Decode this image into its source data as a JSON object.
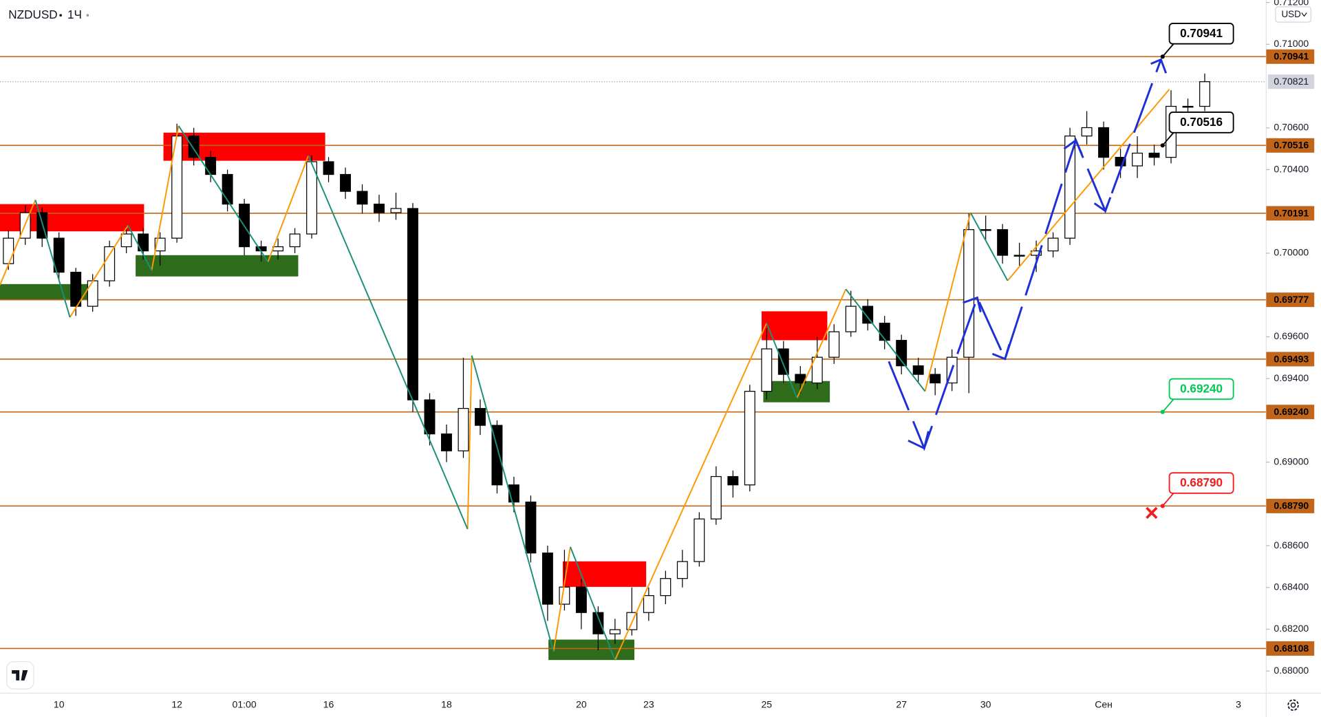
{
  "chart_data": {
    "type": "candlestick",
    "title": "NZDUSD",
    "interval": "1Ч",
    "currency": "USD",
    "categories": [
      null,
      null,
      null,
      "10",
      null,
      null,
      null,
      null,
      null,
      null,
      "12",
      null,
      null,
      null,
      "01:00",
      null,
      null,
      null,
      null,
      "16",
      null,
      null,
      null,
      null,
      null,
      null,
      "18",
      null,
      null,
      null,
      null,
      null,
      null,
      null,
      "20",
      null,
      null,
      null,
      "23",
      null,
      null,
      null,
      null,
      null,
      null,
      "25",
      null,
      null,
      null,
      null,
      null,
      null,
      null,
      "27",
      null,
      null,
      null,
      null,
      "30",
      null,
      null,
      null,
      null,
      null,
      null,
      "Сен",
      null,
      null,
      null,
      null,
      null,
      null,
      null,
      "3"
    ],
    "open": [
      0.6995,
      0.70072,
      0.70194,
      0.70072,
      0.69909,
      0.69746,
      0.69868,
      0.70031,
      0.70092,
      0.70011,
      0.70072,
      0.70561,
      0.70459,
      0.70377,
      0.70235,
      0.70031,
      0.70011,
      0.70031,
      0.70092,
      0.70438,
      0.70377,
      0.70296,
      0.70235,
      0.70194,
      0.70214,
      0.69298,
      0.69135,
      0.69054,
      0.69257,
      0.69176,
      0.68891,
      0.68809,
      0.68565,
      0.6832,
      0.68402,
      0.6828,
      0.68178,
      0.68198,
      0.6828,
      0.68361,
      0.68443,
      0.68524,
      0.68728,
      0.68931,
      0.68891,
      0.69339,
      0.69542,
      0.6942,
      0.69379,
      0.69502,
      0.69624,
      0.69746,
      0.69665,
      0.69583,
      0.69461,
      0.6942,
      0.69379,
      0.69502,
      0.70113,
      0.70113,
      0.6999,
      0.6999,
      0.70011,
      0.70072,
      0.70561,
      0.70601,
      0.70459,
      0.70418,
      0.70479,
      0.70459,
      0.70703,
      0.70703,
      null,
      null
    ],
    "high": [
      0.7011,
      0.7023,
      0.7022,
      0.701,
      0.6993,
      0.699,
      0.7006,
      0.7013,
      0.7012,
      0.701,
      0.7062,
      0.706,
      0.7049,
      0.704,
      0.7026,
      0.7006,
      0.7007,
      0.7012,
      0.7047,
      0.7046,
      0.7041,
      0.7033,
      0.7028,
      0.7029,
      0.7024,
      0.6933,
      0.6918,
      0.695,
      0.693,
      0.692,
      0.6893,
      0.6884,
      0.686,
      0.6858,
      0.6844,
      0.6831,
      0.6825,
      0.684,
      0.684,
      0.6848,
      0.6858,
      0.6876,
      0.6898,
      0.6896,
      0.6937,
      0.6964,
      0.6958,
      0.6946,
      0.696,
      0.6966,
      0.6982,
      0.6978,
      0.697,
      0.6961,
      0.695,
      0.6945,
      0.6954,
      0.7019,
      0.7018,
      0.7014,
      0.7005,
      0.7006,
      0.701,
      0.706,
      0.7068,
      0.7063,
      0.705,
      0.7056,
      0.7052,
      0.7078,
      0.7074,
      0.7086,
      null,
      null
    ],
    "low": [
      0.6992,
      0.7004,
      0.7003,
      0.6987,
      0.697,
      0.6972,
      0.6984,
      0.7,
      0.6997,
      0.6994,
      0.7005,
      0.7042,
      0.7034,
      0.702,
      0.6999,
      0.6996,
      0.6997,
      0.7,
      0.7007,
      0.7034,
      0.7026,
      0.7019,
      0.7015,
      0.7016,
      0.6924,
      0.6908,
      0.69,
      0.6902,
      0.6913,
      0.6885,
      0.6876,
      0.6852,
      0.6824,
      0.6829,
      0.682,
      0.681,
      0.6813,
      0.6817,
      0.6824,
      0.6832,
      0.684,
      0.685,
      0.687,
      0.6883,
      0.6886,
      0.693,
      0.6938,
      0.6933,
      0.6935,
      0.6947,
      0.696,
      0.6963,
      0.6954,
      0.6942,
      0.6938,
      0.6932,
      0.6934,
      0.6933,
      0.7006,
      0.6995,
      0.6994,
      0.6991,
      0.6998,
      0.7004,
      0.7052,
      0.704,
      0.7036,
      0.7036,
      0.7042,
      0.7043,
      0.7064,
      0.7068,
      null,
      null
    ],
    "close": [
      0.70072,
      0.70194,
      0.70072,
      0.69909,
      0.69746,
      0.69868,
      0.70031,
      0.70092,
      0.70011,
      0.70072,
      0.70561,
      0.70459,
      0.70377,
      0.70235,
      0.70031,
      0.70011,
      0.70031,
      0.70092,
      0.70438,
      0.70377,
      0.70296,
      0.70235,
      0.70194,
      0.70214,
      0.69298,
      0.69135,
      0.69054,
      0.69257,
      0.69176,
      0.68891,
      0.68809,
      0.68565,
      0.6832,
      0.68402,
      0.6828,
      0.68178,
      0.68198,
      0.6828,
      0.68361,
      0.68443,
      0.68524,
      0.68728,
      0.68931,
      0.68891,
      0.69339,
      0.69542,
      0.6942,
      0.69379,
      0.69502,
      0.69624,
      0.69746,
      0.69665,
      0.69583,
      0.69461,
      0.6942,
      0.69379,
      0.69502,
      0.70113,
      0.70113,
      0.6999,
      0.6999,
      0.70011,
      0.70072,
      0.70561,
      0.70601,
      0.70459,
      0.70418,
      0.70479,
      0.70459,
      0.70703,
      0.70703,
      0.70821,
      null,
      null
    ],
    "up_color": "#ffffff",
    "down_color": "#000000",
    "ylim": [
      0.67894,
      0.71212
    ],
    "yticks": [
      {
        "value": 0.712,
        "label": "0.71200"
      },
      {
        "value": 0.71,
        "label": "0.71000"
      },
      {
        "value": 0.706,
        "label": "0.70600"
      },
      {
        "value": 0.704,
        "label": "0.70400"
      },
      {
        "value": 0.7,
        "label": "0.70000"
      },
      {
        "value": 0.696,
        "label": "0.69600"
      },
      {
        "value": 0.694,
        "label": "0.69400"
      },
      {
        "value": 0.69,
        "label": "0.69000"
      },
      {
        "value": 0.686,
        "label": "0.68600"
      },
      {
        "value": 0.684,
        "label": "0.68400"
      },
      {
        "value": 0.682,
        "label": "0.68200"
      },
      {
        "value": 0.68,
        "label": "0.68000"
      }
    ],
    "grid": false,
    "levels": [
      0.70941,
      0.70516,
      0.70191,
      0.69777,
      0.69493,
      {
        "value": 0.6924,
        "label": "0.69240"
      },
      {
        "value": 0.6879,
        "label": "0.68790"
      },
      0.68108
    ],
    "level_color": "#c0651a",
    "last_price": 0.70821,
    "callouts": [
      {
        "value": 0.70941,
        "color": "#000000"
      },
      {
        "value": 0.70516,
        "color": "#000000"
      },
      {
        "value": 0.6924,
        "label": "0.69240",
        "color": "#00c853"
      },
      {
        "value": 0.6879,
        "label": "0.68790",
        "color": "#f21c1c"
      }
    ]
  }
}
